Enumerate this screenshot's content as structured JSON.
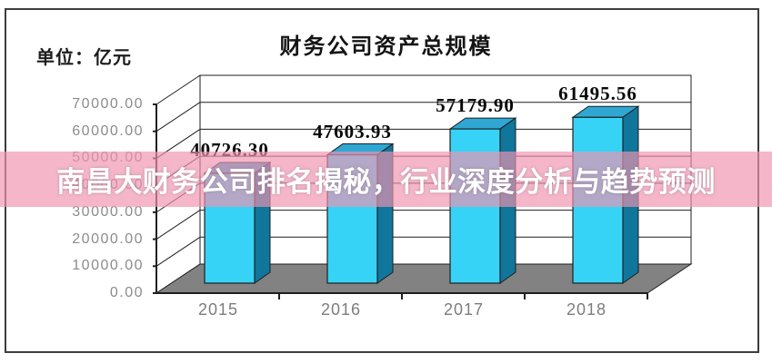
{
  "banner": {
    "text": "南昌大财务公司排名揭秘，行业深度分析与趋势预测",
    "bg_color_rgba": "rgba(242,146,176,0.67)",
    "text_color": "#ffffff"
  },
  "chart": {
    "title": "财务公司资产总规模",
    "unit_label": "单位：亿元",
    "colors": {
      "bar_front": "#36d3f6",
      "bar_side": "#10769c",
      "bar_top": "#2fa7d2",
      "floor": "#828282",
      "wall_bg": "#ffffff",
      "line": "#1f1f1f",
      "axis_text": "#8c8c8c",
      "frame_border": "#3d3d3d"
    }
  },
  "chart_data": {
    "type": "bar",
    "style": "3d-column",
    "title": "财务公司资产总规模",
    "xlabel": "",
    "ylabel": "单位：亿元",
    "categories": [
      "2015",
      "2016",
      "2017",
      "2018"
    ],
    "values": [
      40726.3,
      47603.93,
      57179.9,
      61495.56
    ],
    "value_labels": [
      "40726.30",
      "47603.93",
      "57179.90",
      "61495.56"
    ],
    "y_tick_labels": [
      "0.00",
      "10000.00",
      "20000.00",
      "30000.00",
      "40000.00",
      "50000.00",
      "60000.00",
      "70000.00"
    ],
    "ylim": [
      0,
      70000
    ],
    "y_step": 10000,
    "grid": true,
    "legend": false
  }
}
